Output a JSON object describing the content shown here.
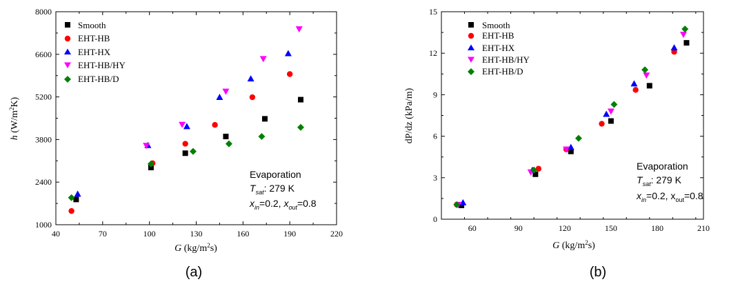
{
  "chart_data": [
    {
      "type": "scatter",
      "panel_label": "(a)",
      "xlabel": "G (kg/m²s)",
      "ylabel": "h (W/m²K)",
      "xlim": [
        40,
        220
      ],
      "ylim": [
        1000,
        8000
      ],
      "xticks": [
        40,
        70,
        100,
        130,
        160,
        190,
        220
      ],
      "yticks": [
        1000,
        2400,
        3800,
        5200,
        6600,
        8000
      ],
      "legend_position": "top-left",
      "series": [
        {
          "name": "Smooth",
          "marker": "square",
          "color": "#000000",
          "x": [
            53,
            101,
            123,
            149,
            174,
            197
          ],
          "y": [
            1830,
            2880,
            3350,
            3900,
            4480,
            5110
          ]
        },
        {
          "name": "EHT-HB",
          "marker": "circle",
          "color": "#ff0000",
          "x": [
            50,
            102,
            123,
            142,
            166,
            190
          ],
          "y": [
            1450,
            3020,
            3660,
            4280,
            5190,
            5950
          ]
        },
        {
          "name": "EHT-HX",
          "marker": "triangle-up",
          "color": "#0000ff",
          "x": [
            54,
            99,
            124,
            145,
            165,
            189
          ],
          "y": [
            2010,
            3610,
            4230,
            5190,
            5800,
            6630
          ]
        },
        {
          "name": "EHT-HB/HY",
          "marker": "triangle-down",
          "color": "#ff00ff",
          "x": [
            98,
            121,
            149,
            173,
            196
          ],
          "y": [
            3600,
            4290,
            5380,
            6450,
            7430
          ]
        },
        {
          "name": "EHT-HB/D",
          "marker": "diamond",
          "color": "#008000",
          "x": [
            50,
            101,
            128,
            151,
            172,
            197
          ],
          "y": [
            1890,
            3000,
            3410,
            3660,
            3900,
            4200
          ]
        }
      ],
      "annotations": [
        "Evaporation",
        "T_sat: 279 K",
        "x_in=0.2, x_out=0.8"
      ]
    },
    {
      "type": "scatter",
      "panel_label": "(b)",
      "xlabel": "G (kg/m²s)",
      "ylabel": "dP/dz (kPa/m)",
      "xlim": [
        40,
        210
      ],
      "ylim": [
        0,
        15
      ],
      "xticks": [
        60,
        90,
        120,
        150,
        180,
        210
      ],
      "yticks": [
        0,
        3,
        6,
        9,
        12,
        15
      ],
      "legend_position": "top-left",
      "series": [
        {
          "name": "Smooth",
          "marker": "square",
          "color": "#000000",
          "x": [
            53,
            101,
            124,
            150,
            175,
            199
          ],
          "y": [
            1.0,
            3.25,
            4.9,
            7.1,
            9.65,
            12.75
          ]
        },
        {
          "name": "EHT-HB",
          "marker": "circle",
          "color": "#ff0000",
          "x": [
            50,
            103,
            121,
            144,
            166,
            191
          ],
          "y": [
            1.05,
            3.65,
            5.05,
            6.9,
            9.35,
            12.1
          ]
        },
        {
          "name": "EHT-HX",
          "marker": "triangle-up",
          "color": "#0000ff",
          "x": [
            54,
            99,
            124,
            147,
            165,
            191
          ],
          "y": [
            1.2,
            3.55,
            5.2,
            7.6,
            9.8,
            12.4
          ]
        },
        {
          "name": "EHT-HB/HY",
          "marker": "triangle-down",
          "color": "#ff00ff",
          "x": [
            51,
            98,
            121,
            150,
            173,
            197
          ],
          "y": [
            1.05,
            3.4,
            5.05,
            7.8,
            10.4,
            13.35
          ]
        },
        {
          "name": "EHT-HB/D",
          "marker": "diamond",
          "color": "#008000",
          "x": [
            50,
            100,
            129,
            152,
            172,
            198
          ],
          "y": [
            1.05,
            3.55,
            5.85,
            8.3,
            10.8,
            13.75
          ]
        }
      ],
      "annotations": [
        "Evaporation",
        "T_sat: 279 K",
        "x_in=0.2, x_out=0.8"
      ]
    }
  ]
}
